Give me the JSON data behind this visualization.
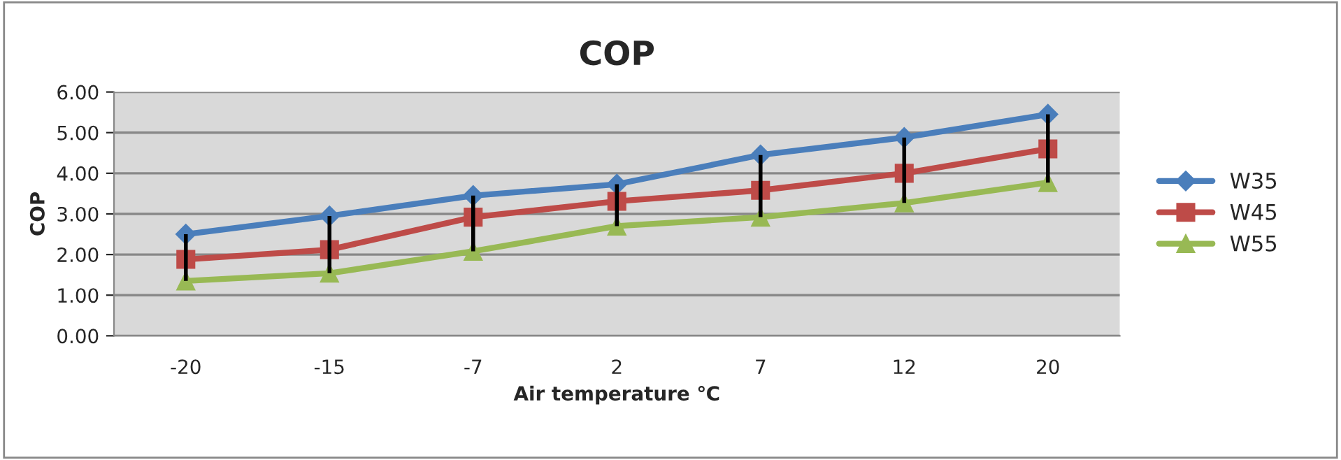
{
  "chart_data": {
    "type": "line",
    "title": "COP",
    "xlabel": "Air temperature ℃",
    "ylabel": "COP",
    "categories": [
      "-20",
      "-15",
      "-7",
      "2",
      "7",
      "12",
      "20"
    ],
    "series": [
      {
        "name": "W35",
        "color": "#4a7ebb",
        "marker": "diamond",
        "values": [
          2.5,
          2.95,
          3.45,
          3.73,
          4.45,
          4.88,
          5.45
        ]
      },
      {
        "name": "W45",
        "color": "#be4b48",
        "marker": "square",
        "values": [
          1.88,
          2.12,
          2.92,
          3.31,
          3.58,
          4.0,
          4.6
        ],
        "errors": [
          [
            1.35,
            2.5
          ],
          [
            1.54,
            2.95
          ],
          [
            2.08,
            3.45
          ],
          [
            2.7,
            3.73
          ],
          [
            2.92,
            4.45
          ],
          [
            3.27,
            4.88
          ],
          [
            3.77,
            5.45
          ]
        ]
      },
      {
        "name": "W55",
        "color": "#98b954",
        "marker": "triangle",
        "values": [
          1.35,
          1.54,
          2.08,
          2.7,
          2.92,
          3.27,
          3.77
        ]
      }
    ],
    "ylim": [
      0,
      6
    ],
    "yticks": [
      {
        "value": 0,
        "label": "0.00"
      },
      {
        "value": 1,
        "label": "1.00"
      },
      {
        "value": 2,
        "label": "2.00"
      },
      {
        "value": 3,
        "label": "3.00"
      },
      {
        "value": 4,
        "label": "4.00"
      },
      {
        "value": 5,
        "label": "5.00"
      },
      {
        "value": 6,
        "label": "6.00"
      }
    ],
    "grid": "y",
    "legend": "right"
  }
}
